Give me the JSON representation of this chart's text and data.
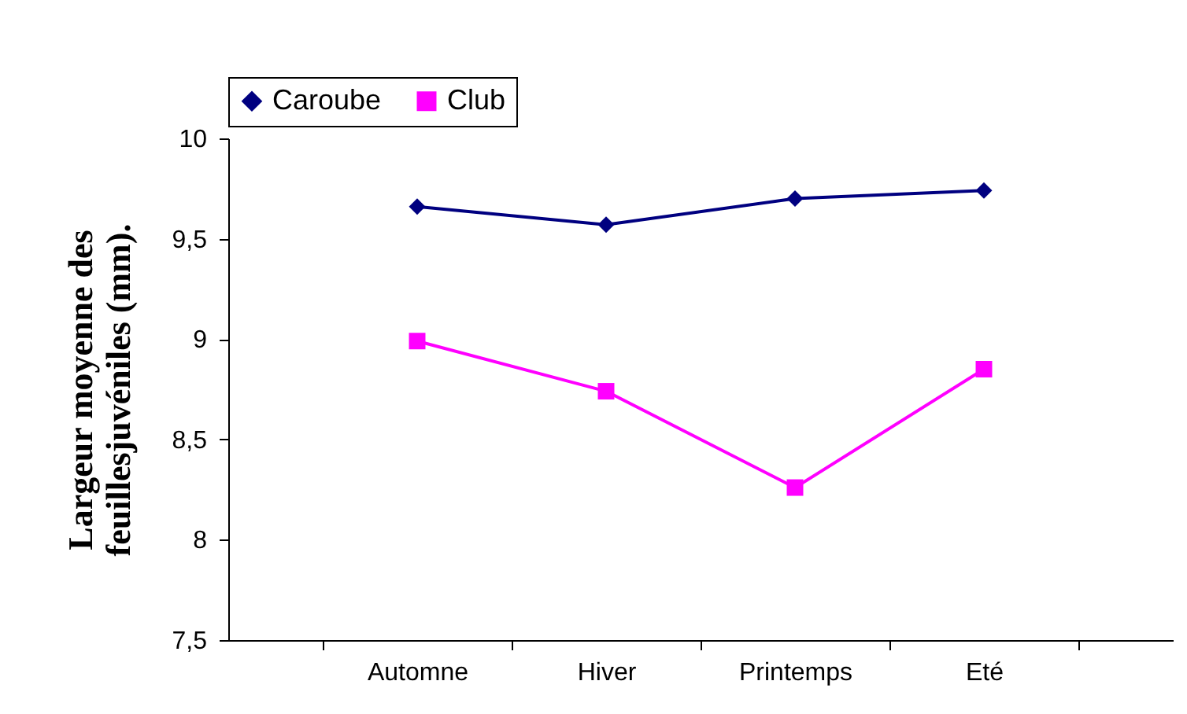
{
  "chart_data": {
    "type": "line",
    "ylabel": "Largeur moyenne des feuillesjuvéniles (mm).",
    "categories": [
      "Automne",
      "Hiver",
      "Printemps",
      "Eté"
    ],
    "series": [
      {
        "name": "Caroube",
        "color": "#000080",
        "marker": "diamond",
        "values": [
          9.66,
          9.57,
          9.7,
          9.74
        ]
      },
      {
        "name": "Club",
        "color": "#ff00ff",
        "marker": "square",
        "values": [
          8.99,
          8.74,
          8.26,
          8.85
        ]
      }
    ],
    "ylim": [
      7.5,
      10
    ],
    "yticks": [
      {
        "value": 7.5,
        "label": "7,5"
      },
      {
        "value": 8,
        "label": "8"
      },
      {
        "value": 8.5,
        "label": "8,5"
      },
      {
        "value": 9,
        "label": "9"
      },
      {
        "value": 9.5,
        "label": "9,5"
      },
      {
        "value": 10,
        "label": "10"
      }
    ],
    "legend": "top",
    "grid": false
  }
}
